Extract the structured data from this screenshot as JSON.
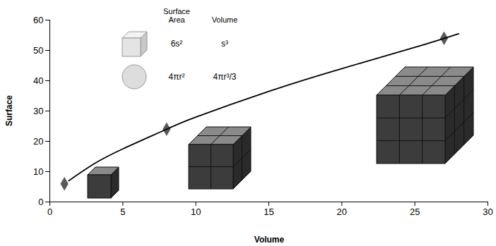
{
  "chart_data": {
    "type": "scatter",
    "x_label": "Volume",
    "y_label": "Surface",
    "xlim": [
      0,
      30
    ],
    "xticks": [
      0,
      5,
      10,
      15,
      20,
      25,
      30
    ],
    "ylim": [
      0,
      60
    ],
    "yticks": [
      0,
      10,
      20,
      30,
      40,
      50,
      60
    ],
    "grid": false,
    "series": [
      {
        "type": "scatter",
        "marker": "diamond",
        "color": "#595959",
        "x": [
          1,
          8,
          27
        ],
        "values": [
          6,
          24,
          54
        ]
      },
      {
        "type": "line",
        "line_style": "solid",
        "color": "#000000",
        "x": [
          1.3,
          3,
          5,
          8,
          10,
          15,
          20,
          25,
          28
        ],
        "values": [
          7,
          12.5,
          17.5,
          24,
          28,
          36.5,
          44,
          51,
          55.5
        ]
      }
    ],
    "formula_table": {
      "headers": [
        "Surface\nArea",
        "Volume"
      ],
      "rows": [
        [
          "6s²",
          "s³"
        ],
        [
          "4πr²",
          "4πr³/3"
        ]
      ]
    }
  }
}
